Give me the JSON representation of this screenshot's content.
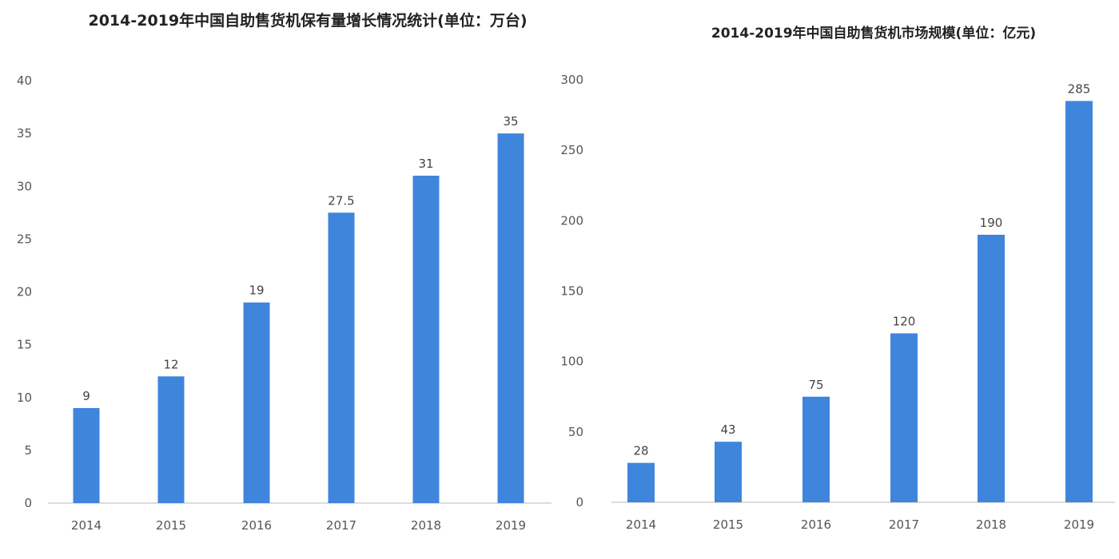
{
  "chart_data": [
    {
      "type": "bar",
      "title": "2014-2019年中国自助售货机保有量增长情况统计(单位：万台)",
      "categories": [
        "2014",
        "2015",
        "2016",
        "2017",
        "2018",
        "2019"
      ],
      "values": [
        9,
        12,
        19,
        27.5,
        31,
        35
      ],
      "ylim": [
        0,
        40
      ],
      "yticks": [
        0,
        5,
        10,
        15,
        20,
        25,
        30,
        35,
        40
      ],
      "grid": false,
      "color": "#3f85dc"
    },
    {
      "type": "bar",
      "title": "2014-2019年中国自助售货机市场规模(单位：亿元)",
      "categories": [
        "2014",
        "2015",
        "2016",
        "2017",
        "2018",
        "2019"
      ],
      "values": [
        28,
        43,
        75,
        120,
        190,
        285
      ],
      "ylim": [
        0,
        300
      ],
      "yticks": [
        0,
        50,
        100,
        150,
        200,
        250,
        300
      ],
      "grid": false,
      "color": "#3f85dc"
    }
  ]
}
